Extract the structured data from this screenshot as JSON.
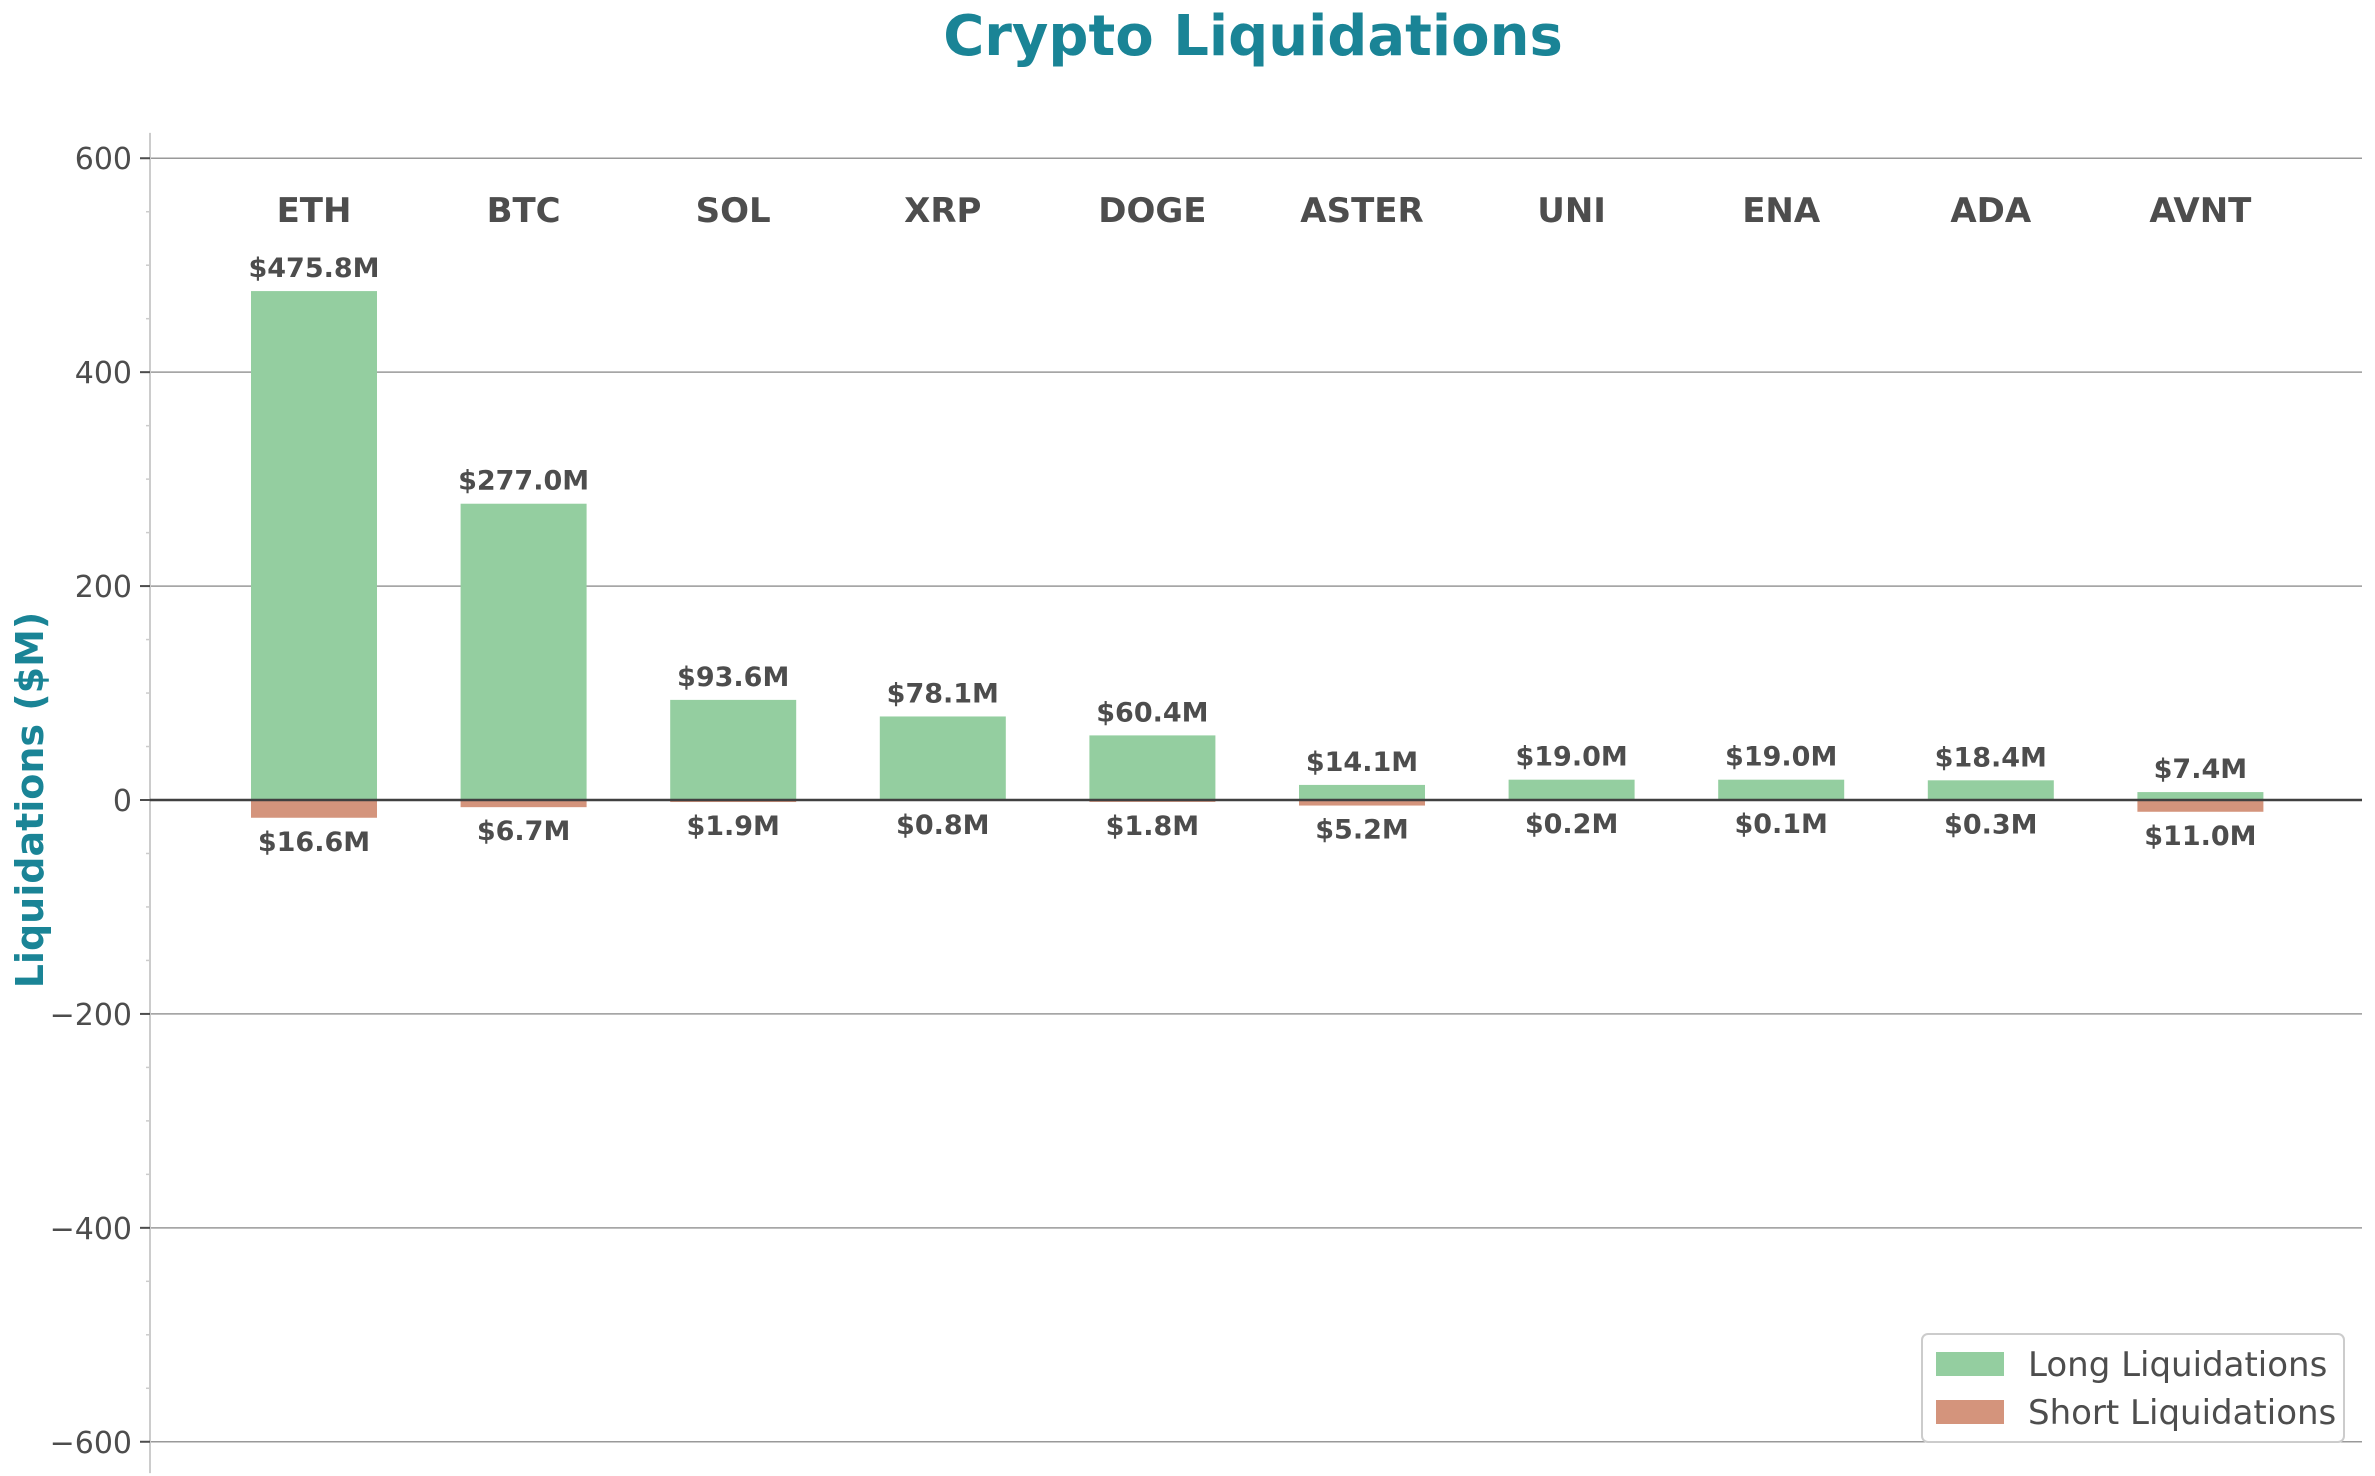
{
  "chart_data": {
    "type": "bar",
    "title": "Crypto Liquidations",
    "xlabel": "",
    "ylabel": "Liquidations ($M)",
    "ylim": [
      -620,
      620
    ],
    "yticks": [
      -600,
      -400,
      -200,
      0,
      200,
      400,
      600
    ],
    "ytick_labels": [
      "−600",
      "−400",
      "−200",
      "0",
      "200",
      "400",
      "600"
    ],
    "grid": "horizontal",
    "legend_position": "bottom-right",
    "categories": [
      "ETH",
      "BTC",
      "SOL",
      "XRP",
      "DOGE",
      "ASTER",
      "UNI",
      "ENA",
      "ADA",
      "AVNT"
    ],
    "series": [
      {
        "name": "Long Liquidations",
        "values": [
          475.8,
          277.0,
          93.6,
          78.1,
          60.4,
          14.1,
          19.0,
          19.0,
          18.4,
          7.4
        ],
        "labels": [
          "$475.8M",
          "$277.0M",
          "$93.6M",
          "$78.1M",
          "$60.4M",
          "$14.1M",
          "$19.0M",
          "$19.0M",
          "$18.4M",
          "$7.4M"
        ],
        "color": "#94cea0"
      },
      {
        "name": "Short Liquidations",
        "values": [
          -16.6,
          -6.7,
          -1.9,
          -0.8,
          -1.8,
          -5.2,
          -0.2,
          -0.1,
          -0.3,
          -11.0
        ],
        "labels": [
          "$16.6M",
          "$6.7M",
          "$1.9M",
          "$0.8M",
          "$1.8M",
          "$5.2M",
          "$0.2M",
          "$0.1M",
          "$0.3M",
          "$11.0M"
        ],
        "color": "#d4947c"
      }
    ]
  },
  "colors": {
    "title": "#1a8496",
    "text": "#4d4d4d",
    "grid": "#999999",
    "zero_line": "#404040",
    "axis": "#cccccc"
  }
}
